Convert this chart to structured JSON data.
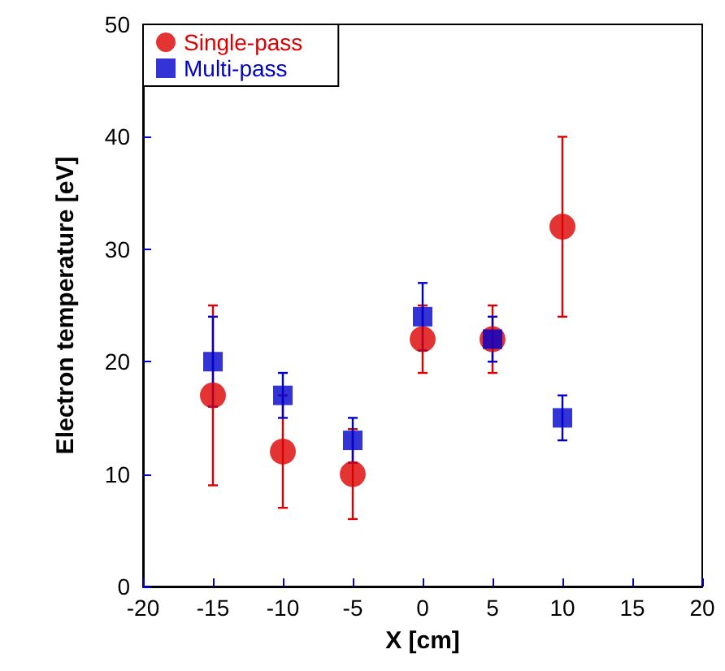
{
  "chart_data": {
    "type": "scatter",
    "xlabel": "X [cm]",
    "ylabel": "Electron temperature [eV]",
    "x": [
      -15,
      -10,
      -5,
      0,
      5,
      10
    ],
    "series": [
      {
        "name": "Single-pass",
        "color": "#dd0000",
        "marker": "circle",
        "values": [
          17,
          12,
          10,
          22,
          22,
          32
        ],
        "errors": [
          8,
          5,
          4,
          3,
          3,
          8
        ]
      },
      {
        "name": "Multi-pass",
        "color": "#0000cc",
        "marker": "square",
        "values": [
          20,
          17,
          13,
          24,
          22,
          15
        ],
        "errors": [
          4,
          2,
          2,
          3,
          2,
          2
        ]
      }
    ],
    "xlim": [
      -20,
      20
    ],
    "xticks": [
      -20,
      -15,
      -10,
      -5,
      0,
      5,
      10,
      15,
      20
    ],
    "ylim": [
      0,
      50
    ],
    "yticks": [
      0,
      10,
      20,
      30,
      40,
      50
    ],
    "grid": false,
    "legend": "top left"
  }
}
